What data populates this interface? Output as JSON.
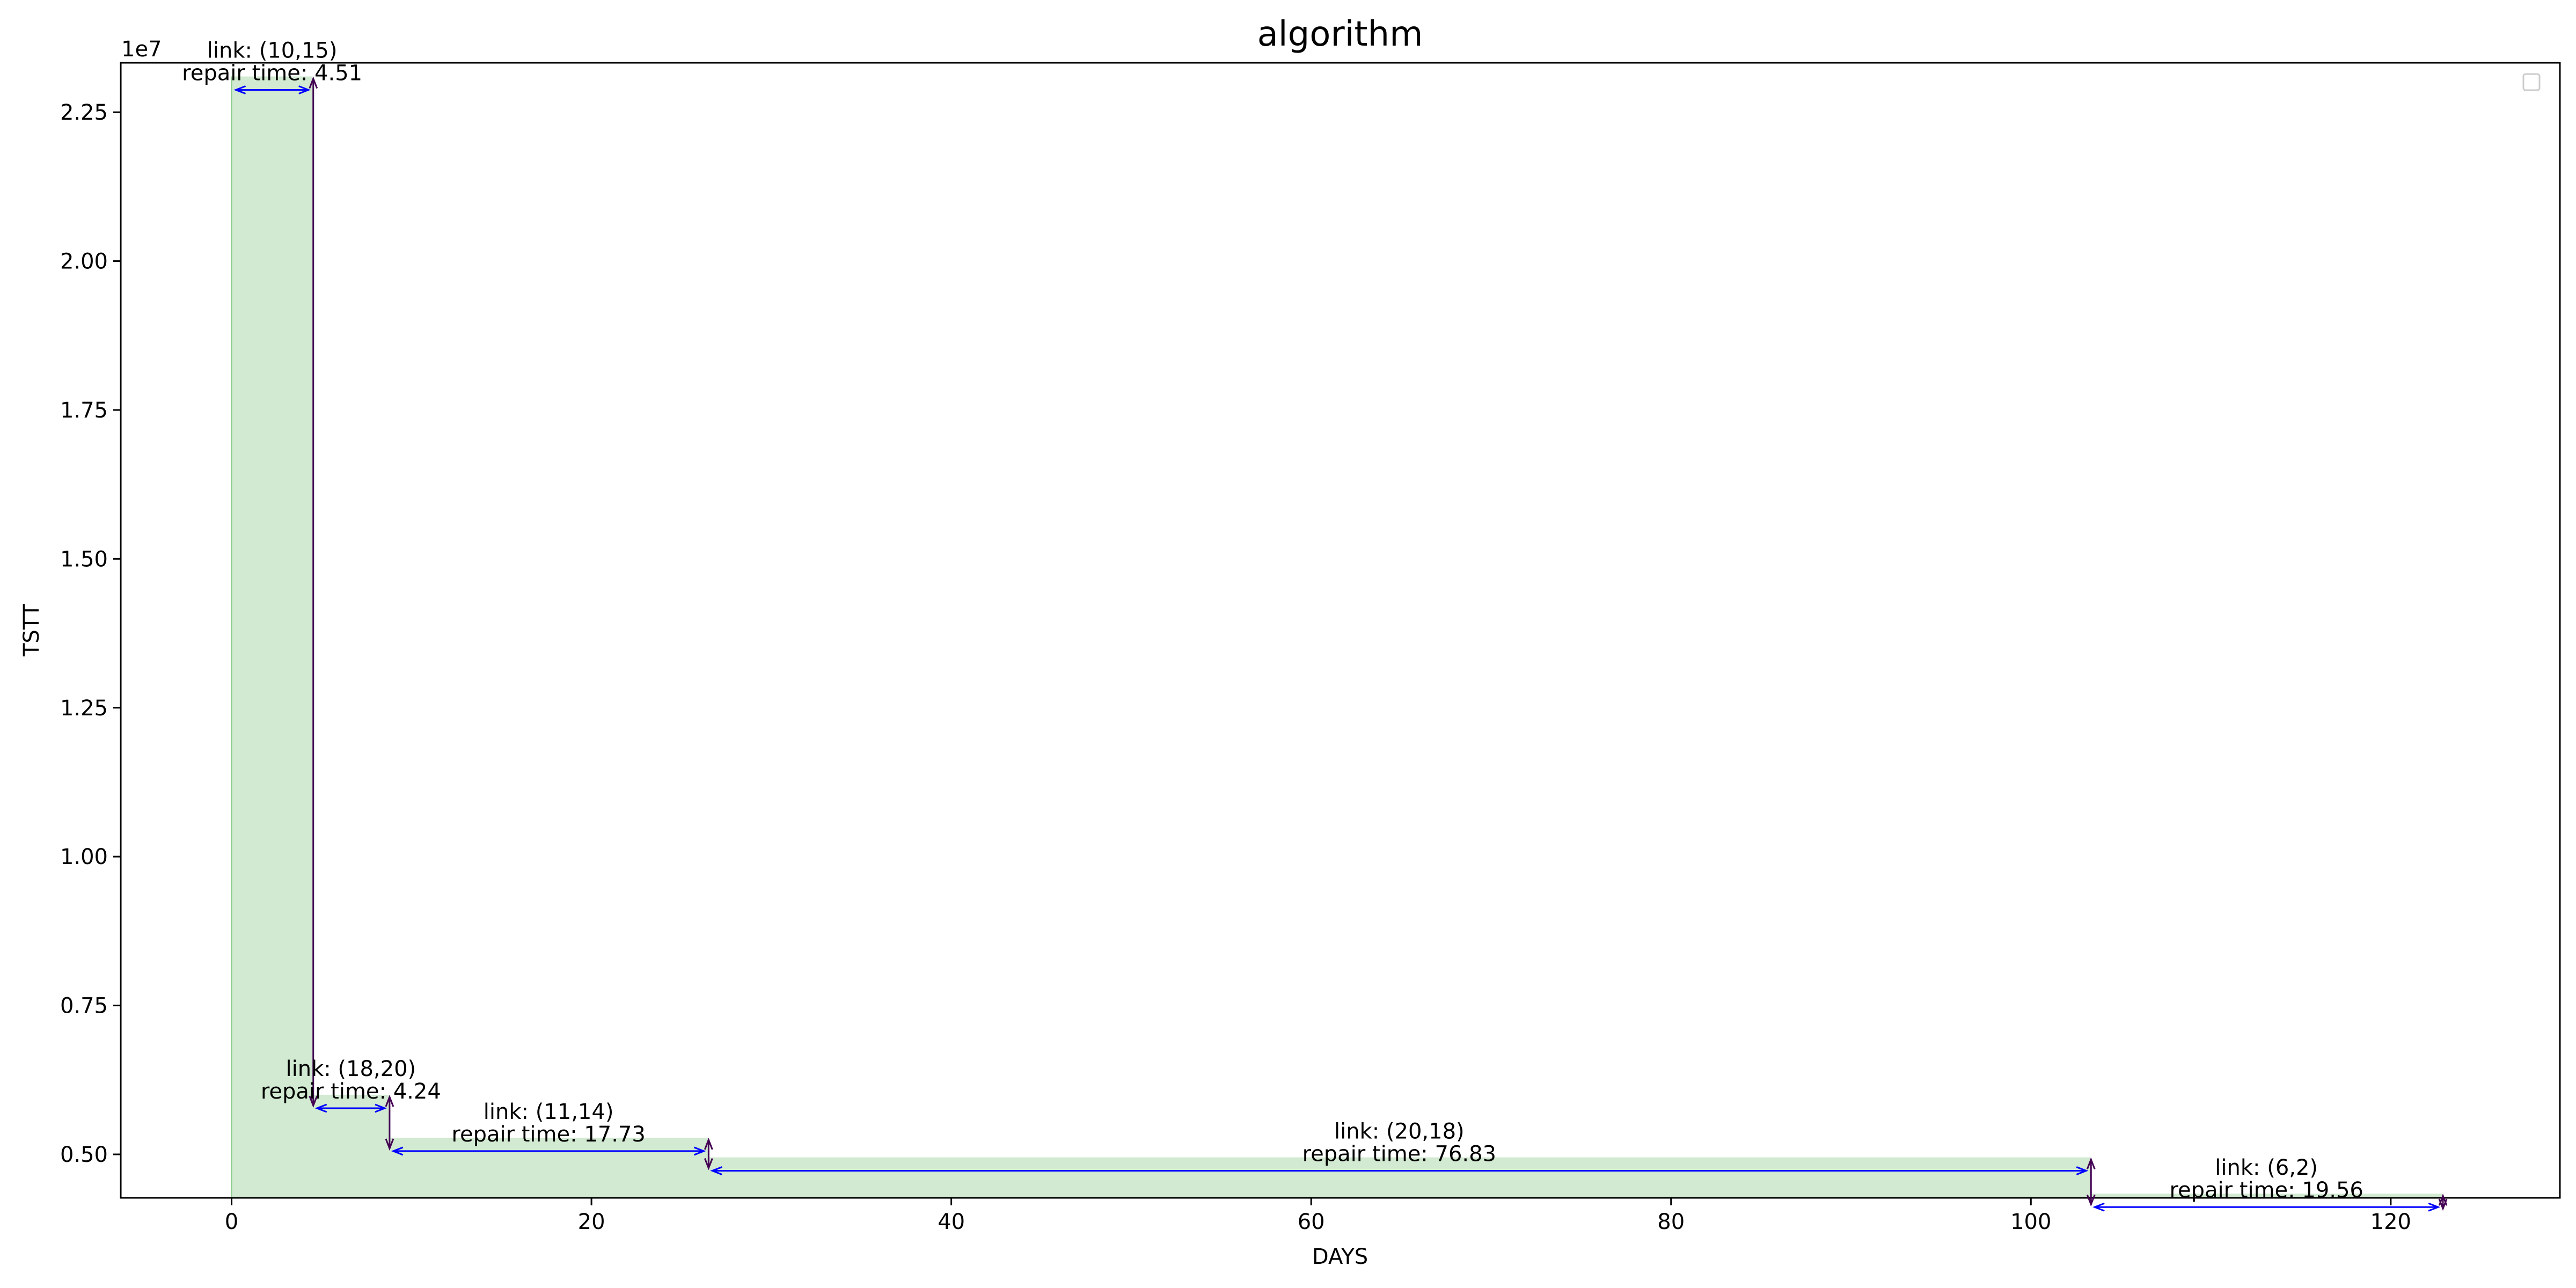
{
  "chart_data": {
    "type": "area",
    "title": "algorithm",
    "xlabel": "DAYS",
    "ylabel": "TSTT",
    "y_offset_label": "1e7",
    "xlim": [
      -6.16,
      129.4
    ],
    "ylim": [
      4270000,
      23330000
    ],
    "x_ticks": [
      0,
      20,
      40,
      60,
      80,
      100,
      120
    ],
    "x_tick_labels": [
      "0",
      "20",
      "40",
      "60",
      "80",
      "100",
      "120"
    ],
    "y_ticks": [
      5000000,
      7500000,
      10000000,
      12500000,
      15000000,
      17500000,
      20000000,
      22500000
    ],
    "y_tick_labels": [
      "0.50",
      "0.75",
      "1.00",
      "1.25",
      "1.50",
      "1.75",
      "2.00",
      "2.25"
    ],
    "grid": false,
    "legend": "top-right (empty)",
    "colors": {
      "fill": "#2ca02c",
      "fill_opacity": 0.22,
      "arrow": "#0000ff",
      "tstt_arrow": "#440154"
    },
    "steps": [
      {
        "start": 0.0,
        "end": 4.51,
        "tstt": 23100000,
        "link": "link: (10,15)",
        "repair": "repair time: 4.51"
      },
      {
        "start": 4.51,
        "end": 8.75,
        "tstt": 6000000,
        "link": "link: (18,20)",
        "repair": "repair time: 4.24"
      },
      {
        "start": 8.75,
        "end": 26.48,
        "tstt": 5280000,
        "link": "link: (11,14)",
        "repair": "repair time: 17.73"
      },
      {
        "start": 26.48,
        "end": 103.31,
        "tstt": 4950000,
        "link": "link: (20,18)",
        "repair": "repair time: 76.83"
      },
      {
        "start": 103.31,
        "end": 122.87,
        "tstt": 4340000,
        "link": "link: (6,2)",
        "repair": "repair time: 19.56"
      }
    ],
    "final_tstt": 4270000
  }
}
